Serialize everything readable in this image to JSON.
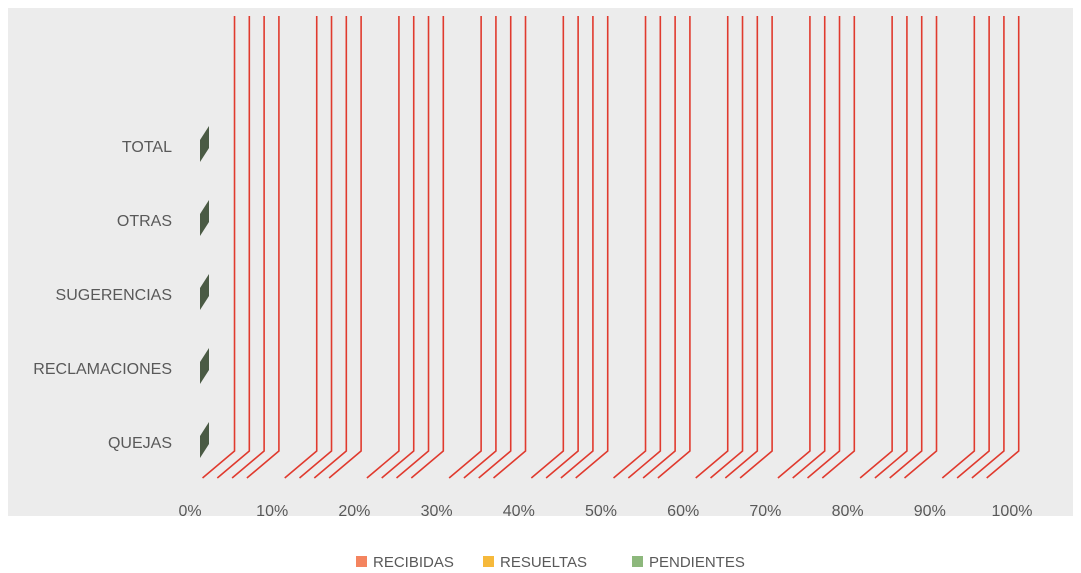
{
  "chart_data": {
    "type": "bar",
    "orientation": "horizontal",
    "stacked": "percent",
    "categories": [
      "QUEJAS",
      "RECLAMACIONES",
      "SUGERENCIAS",
      "OTRAS",
      "TOTAL"
    ],
    "series": [
      {
        "name": "RECIBIDAS",
        "color": "#f4845f"
      },
      {
        "name": "RESUELTAS",
        "color": "#f6b93b"
      },
      {
        "name": "PENDIENTES",
        "color": "#8db87c"
      }
    ],
    "x_ticks": [
      "0%",
      "10%",
      "20%",
      "30%",
      "40%",
      "50%",
      "60%",
      "70%",
      "80%",
      "90%",
      "100%"
    ],
    "xlim": [
      0,
      100
    ],
    "gridlines": true,
    "gridline_color": "#e03a2e",
    "plot_background": "#ececec",
    "bar_marker_color": "#4a5a44",
    "legend_position": "bottom"
  }
}
